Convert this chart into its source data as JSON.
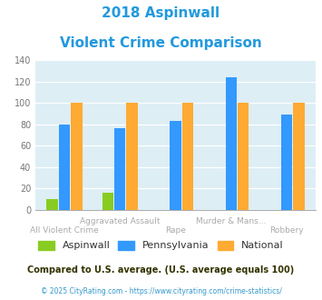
{
  "title_line1": "2018 Aspinwall",
  "title_line2": "Violent Crime Comparison",
  "title_color": "#2299dd",
  "aspinwall": [
    10,
    16,
    0,
    0,
    0
  ],
  "pennsylvania": [
    80,
    76,
    83,
    124,
    89
  ],
  "national": [
    100,
    100,
    100,
    100,
    100
  ],
  "aspinwall_color": "#88cc22",
  "pennsylvania_color": "#3399ff",
  "national_color": "#ffaa33",
  "ylim": [
    0,
    140
  ],
  "yticks": [
    0,
    20,
    40,
    60,
    80,
    100,
    120,
    140
  ],
  "plot_bg": "#ddeef5",
  "xtick_row1": [
    "",
    "Aggravated Assault",
    "",
    "Murder & Mans...",
    ""
  ],
  "xtick_row2": [
    "All Violent Crime",
    "",
    "Rape",
    "",
    "Robbery"
  ],
  "footer_text": "Compared to U.S. average. (U.S. average equals 100)",
  "copyright_text": "© 2025 CityRating.com - https://www.cityrating.com/crime-statistics/",
  "footer_color": "#333300",
  "copyright_color": "#3399cc",
  "legend_labels": [
    "Aspinwall",
    "Pennsylvania",
    "National"
  ],
  "legend_text_color": "#333333"
}
